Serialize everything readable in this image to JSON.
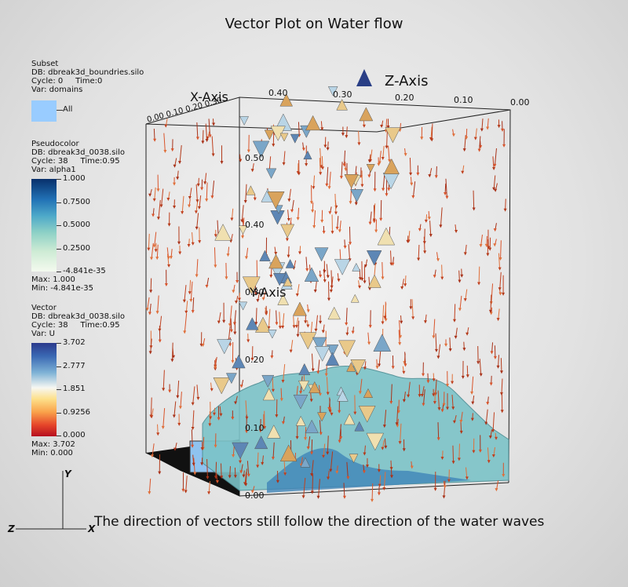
{
  "title": "Vector Plot on Water flow",
  "caption": "The direction of vectors still follow the direction of the water waves",
  "subset_legend": {
    "heading": "Subset",
    "db": "DB: dbreak3d_boundries.silo",
    "cycle": "Cycle: 0",
    "time": "Time:0",
    "var": "Var: domains",
    "swatch_color": "#99ccff",
    "swatch_label": "All"
  },
  "pseudocolor_legend": {
    "heading": "Pseudocolor",
    "db": "DB: dbreak3d_0038.silo",
    "cycle": "Cycle: 38",
    "time": "Time:0.95",
    "var": "Var: alpha1",
    "ticks": [
      "1.000",
      "0.7500",
      "0.5000",
      "0.2500",
      "-4.841e-35"
    ],
    "max": "Max:  1.000",
    "min": "Min: -4.841e-35"
  },
  "vector_legend": {
    "heading": "Vector",
    "db": "DB: dbreak3d_0038.silo",
    "cycle": "Cycle: 38",
    "time": "Time:0.95",
    "var": "Var: U",
    "ticks": [
      "3.702",
      "2.777",
      "1.851",
      "0.9256",
      "0.000"
    ],
    "max": "Max:  3.702",
    "min": "Min:  0.000"
  },
  "axes": {
    "x_label": "X-Axis",
    "y_label": "Y-Axis",
    "z_label": "Z-Axis",
    "z_ticks": [
      "0.40",
      "0.30",
      "0.20",
      "0.10",
      "0.00"
    ],
    "y_ticks": [
      "0.50",
      "0.40",
      "0.30",
      "0.20",
      "0.10",
      "0.00"
    ],
    "x_ticks_text": "0.00 0.10 0.20 0.30"
  },
  "triad": {
    "y": "Y",
    "x": "X",
    "z": "Z"
  }
}
